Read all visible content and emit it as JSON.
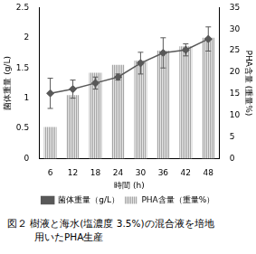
{
  "chart_data": {
    "type": "bar",
    "caption": [
      "図２ 樹液と海水(塩濃度 3.5%)の混合液を培地",
      "用いたPHA生産"
    ],
    "x_label": "時間 (h)",
    "y_label": "菌体重量 (g/L)",
    "y2_label": "PHA含量 (重量%)",
    "categories": [
      "6",
      "12",
      "18",
      "24",
      "30",
      "36",
      "42",
      "48"
    ],
    "series": [
      {
        "name": "PHA含量（重量%）",
        "type": "bar",
        "axis": "y2",
        "color": "#a6a6a6",
        "values": [
          7.3,
          14.7,
          19.9,
          21.7,
          22.7,
          25,
          26,
          28
        ]
      },
      {
        "name": "菌体重量（g/L）",
        "type": "line",
        "axis": "y",
        "color": "#595959",
        "marker": "diamond",
        "values": [
          1.08,
          1.15,
          1.25,
          1.35,
          1.58,
          1.75,
          1.8,
          1.98
        ],
        "errors": [
          0.25,
          0.15,
          0.1,
          0.05,
          0.18,
          0.25,
          0.1,
          0.2
        ]
      }
    ],
    "ylim": [
      0,
      2.5
    ],
    "yticks": [
      0,
      0.5,
      1,
      1.5,
      2,
      2.5
    ],
    "y2lim": [
      0,
      35
    ],
    "y2ticks": [
      0,
      5,
      10,
      15,
      20,
      25,
      30,
      35
    ],
    "grid": false,
    "legend": "bottom"
  }
}
